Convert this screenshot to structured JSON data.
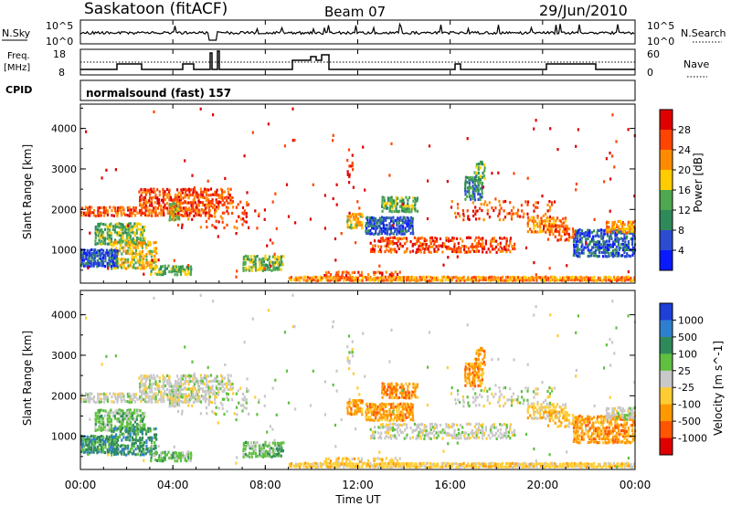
{
  "header": {
    "site": "Saskatoon (fitACF)",
    "beam": "Beam 07",
    "date": "29/Jun/2010"
  },
  "nsky_panel": {
    "left_label": "N.Sky",
    "tick_top": "10^5",
    "tick_bottom": "10^0",
    "right_label": "N.Search",
    "right_tick_top": "10^5",
    "right_tick_bottom": "10^0"
  },
  "freq_panel": {
    "left_label_1": "Freq.",
    "left_label_2": "[MHz]",
    "tick_top": "18",
    "tick_bottom": "8",
    "right_label": "Nave",
    "right_tick_top": "60",
    "right_tick_bottom": "0"
  },
  "cpid": {
    "label": "CPID",
    "value": "normalsound (fast) 157"
  },
  "chart_data": [
    {
      "type": "heatmap",
      "name": "power",
      "xlabel": "Time UT",
      "ylabel": "Slant Range [km]",
      "xlim": [
        0,
        24
      ],
      "ylim": [
        180,
        4600
      ],
      "x_ticks": [
        "00:00",
        "04:00",
        "08:00",
        "12:00",
        "16:00",
        "20:00",
        "00:00"
      ],
      "y_ticks": [
        "1000",
        "2000",
        "3000",
        "4000"
      ],
      "colorbar_label": "Power [dB]",
      "colorbar_ticks": [
        "4",
        "8",
        "12",
        "16",
        "20",
        "24",
        "28"
      ],
      "colorbar_colors": [
        "#0a1aff",
        "#2b4bd0",
        "#2f8a5a",
        "#4fa84f",
        "#ffcc00",
        "#ff8c00",
        "#ff4400",
        "#e00000"
      ],
      "colorbar_range": [
        0,
        32
      ]
    },
    {
      "type": "heatmap",
      "name": "velocity",
      "xlabel": "Time UT",
      "ylabel": "Slant Range [km]",
      "xlim": [
        0,
        24
      ],
      "ylim": [
        180,
        4600
      ],
      "x_ticks": [
        "00:00",
        "04:00",
        "08:00",
        "12:00",
        "16:00",
        "20:00",
        "00:00"
      ],
      "y_ticks": [
        "1000",
        "2000",
        "3000",
        "4000"
      ],
      "colorbar_label": "Velocity [m s^-1]",
      "colorbar_ticks": [
        "1000",
        "500",
        "100",
        "25",
        "-25",
        "-100",
        "-500",
        "-1000"
      ],
      "colorbar_colors": [
        "#1e3fd8",
        "#2f7fd0",
        "#2f8a5a",
        "#5fc040",
        "#c8c8c8",
        "#ffcc33",
        "#ff9900",
        "#ff5500",
        "#e00000"
      ]
    }
  ]
}
